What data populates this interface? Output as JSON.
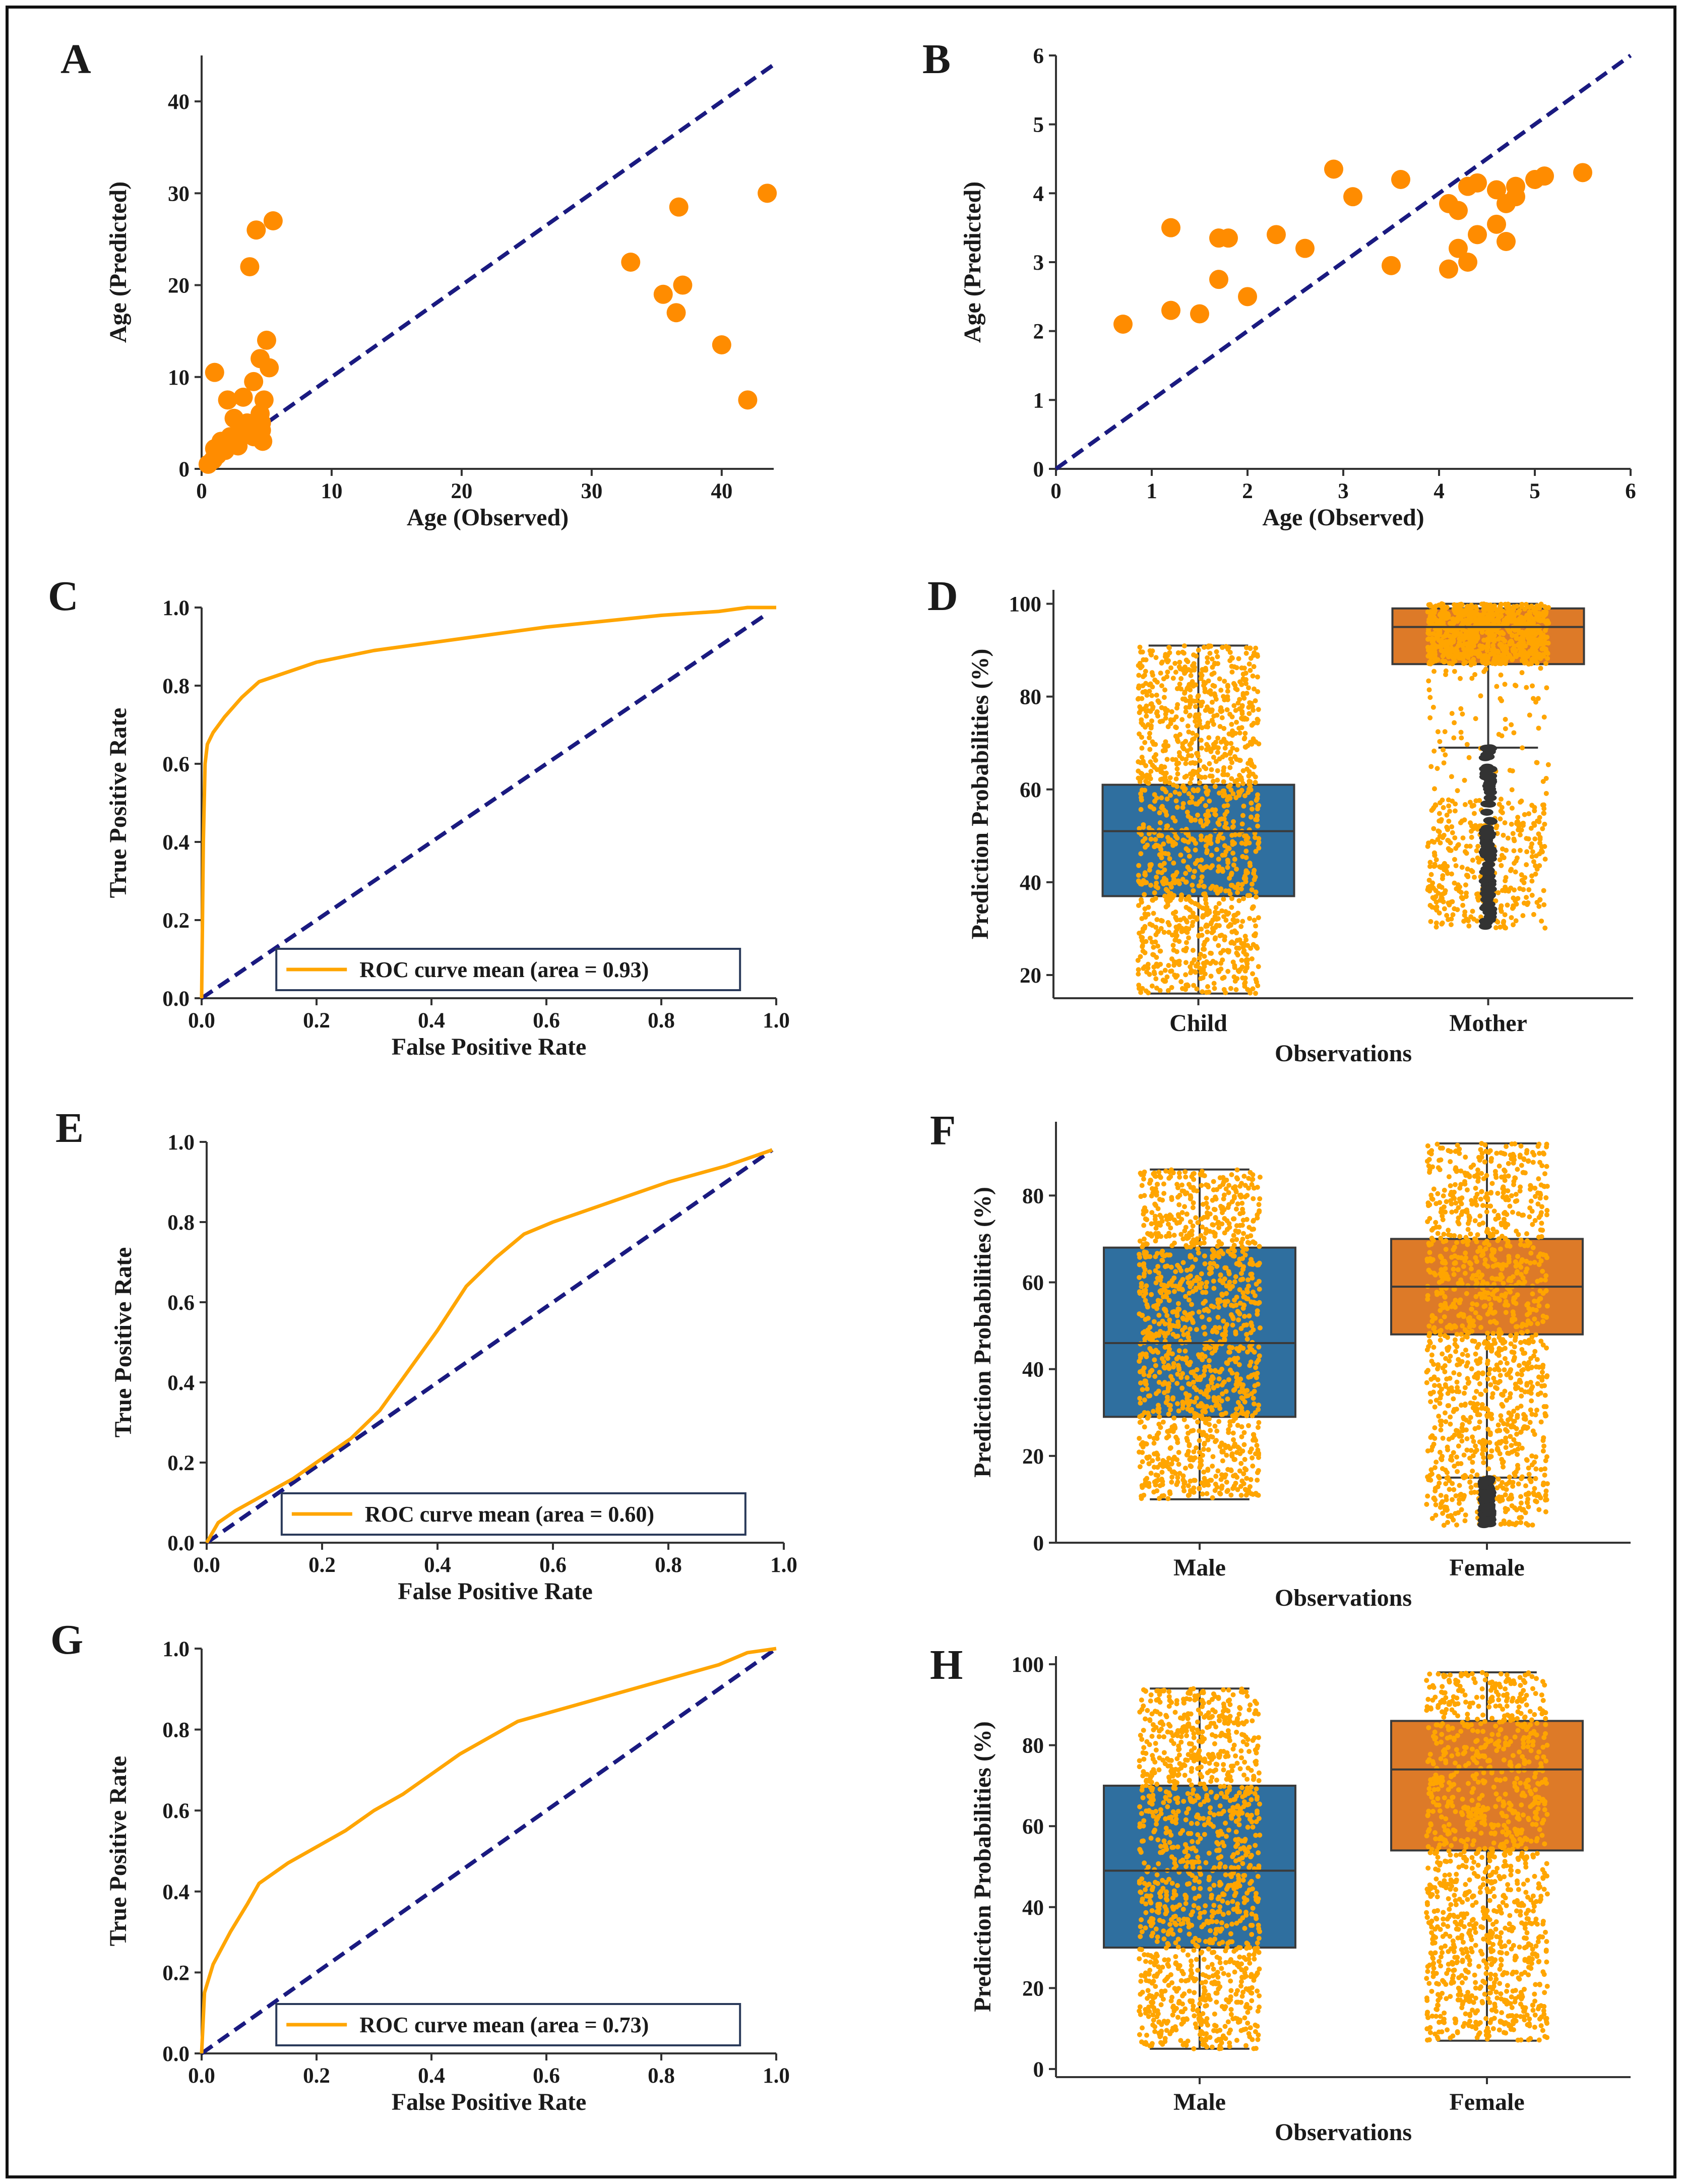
{
  "figure": {
    "border_color": "#111111",
    "colors": {
      "scatter_point": "#ff8c00",
      "diagonal": "#1a1a80",
      "roc_line": "#ffa500",
      "box_blue": "#2f6f9f",
      "box_orange": "#dd7a28",
      "jitter": "#ffa500",
      "outlier": "#333333"
    }
  },
  "chart_data": [
    {
      "panel": "A",
      "type": "scatter",
      "xlabel": "Age (Observed)",
      "ylabel": "Age (Predicted)",
      "xlim": [
        0,
        44
      ],
      "ylim": [
        0,
        45
      ],
      "xticks": [
        0,
        10,
        20,
        30,
        40
      ],
      "yticks": [
        0,
        10,
        20,
        30,
        40
      ],
      "diagonal": true,
      "points": [
        [
          0.5,
          0.5
        ],
        [
          0.9,
          1.0
        ],
        [
          1.0,
          2.2
        ],
        [
          1.2,
          1.5
        ],
        [
          1.5,
          3.0
        ],
        [
          1.0,
          10.5
        ],
        [
          1.8,
          2.0
        ],
        [
          2.0,
          7.5
        ],
        [
          2.2,
          3.5
        ],
        [
          2.5,
          5.5
        ],
        [
          2.8,
          2.5
        ],
        [
          3.0,
          4.0
        ],
        [
          3.2,
          7.8
        ],
        [
          3.5,
          5.0
        ],
        [
          3.7,
          22.0
        ],
        [
          4.0,
          9.5
        ],
        [
          4.2,
          26.0
        ],
        [
          4.0,
          3.5
        ],
        [
          4.3,
          4.5
        ],
        [
          4.5,
          6.0
        ],
        [
          4.5,
          12.0
        ],
        [
          4.6,
          5.0
        ],
        [
          4.7,
          3.0
        ],
        [
          4.8,
          7.5
        ],
        [
          5.0,
          14.0
        ],
        [
          5.2,
          11.0
        ],
        [
          5.5,
          27.0
        ],
        [
          4.4,
          3.8
        ],
        [
          4.6,
          4.2
        ],
        [
          33.0,
          22.5
        ],
        [
          35.5,
          19.0
        ],
        [
          36.5,
          17.0
        ],
        [
          36.7,
          28.5
        ],
        [
          37.0,
          20.0
        ],
        [
          40.0,
          13.5
        ],
        [
          42.0,
          7.5
        ],
        [
          43.5,
          30.0
        ]
      ]
    },
    {
      "panel": "B",
      "type": "scatter",
      "xlabel": "Age (Observed)",
      "ylabel": "Age (Predicted)",
      "xlim": [
        0,
        6
      ],
      "ylim": [
        0,
        6
      ],
      "xticks": [
        0,
        1,
        2,
        3,
        4,
        5,
        6
      ],
      "yticks": [
        0,
        1,
        2,
        3,
        4,
        5,
        6
      ],
      "diagonal": true,
      "points": [
        [
          0.7,
          2.1
        ],
        [
          1.2,
          3.5
        ],
        [
          1.2,
          2.3
        ],
        [
          1.5,
          2.25
        ],
        [
          1.7,
          3.35
        ],
        [
          1.7,
          2.75
        ],
        [
          1.8,
          3.35
        ],
        [
          2.0,
          2.5
        ],
        [
          2.3,
          3.4
        ],
        [
          2.6,
          3.2
        ],
        [
          2.9,
          4.35
        ],
        [
          3.1,
          3.95
        ],
        [
          3.5,
          2.95
        ],
        [
          3.6,
          4.2
        ],
        [
          4.1,
          3.85
        ],
        [
          4.1,
          2.9
        ],
        [
          4.2,
          3.75
        ],
        [
          4.2,
          3.2
        ],
        [
          4.3,
          4.1
        ],
        [
          4.3,
          3.0
        ],
        [
          4.4,
          4.15
        ],
        [
          4.4,
          3.4
        ],
        [
          4.6,
          4.05
        ],
        [
          4.6,
          3.55
        ],
        [
          4.7,
          3.3
        ],
        [
          4.7,
          3.85
        ],
        [
          4.8,
          4.1
        ],
        [
          4.8,
          3.95
        ],
        [
          5.0,
          4.2
        ],
        [
          5.1,
          4.25
        ],
        [
          5.5,
          4.3
        ]
      ]
    },
    {
      "panel": "C",
      "type": "line",
      "title": "",
      "xlabel": "False Positive Rate",
      "ylabel": "True Positive Rate",
      "xlim": [
        0,
        1.0
      ],
      "ylim": [
        0,
        1.0
      ],
      "xticks": [
        "0.0",
        "0.2",
        "0.4",
        "0.6",
        "0.8",
        "1.0"
      ],
      "yticks": [
        "0.0",
        "0.2",
        "0.4",
        "0.6",
        "0.8",
        "1.0"
      ],
      "legend": "ROC curve mean (area = 0.93)",
      "diagonal_end": [
        0.98,
        0.98
      ],
      "series": [
        {
          "name": "ROC curve mean (area = 0.93)",
          "x": [
            0,
            0.003,
            0.006,
            0.01,
            0.02,
            0.04,
            0.07,
            0.1,
            0.12,
            0.2,
            0.3,
            0.4,
            0.5,
            0.6,
            0.7,
            0.8,
            0.9,
            0.95,
            1.0
          ],
          "y": [
            0,
            0.4,
            0.6,
            0.65,
            0.68,
            0.72,
            0.77,
            0.81,
            0.82,
            0.86,
            0.89,
            0.91,
            0.93,
            0.95,
            0.965,
            0.98,
            0.99,
            1.0,
            1.0
          ]
        }
      ]
    },
    {
      "panel": "D",
      "type": "box",
      "xlabel": "Observations",
      "ylabel": "Prediction Probabilities (%)",
      "ylim": [
        15,
        103
      ],
      "yticks": [
        20,
        40,
        60,
        80,
        100
      ],
      "categories": [
        "Child",
        "Mother"
      ],
      "boxes": [
        {
          "name": "Child",
          "min": 16,
          "q1": 37,
          "median": 51,
          "q3": 61,
          "max": 91,
          "jitter_range": [
            16,
            91
          ],
          "outlier_range": null
        },
        {
          "name": "Mother",
          "min": 69,
          "q1": 87,
          "median": 95,
          "q3": 99,
          "max": 100,
          "jitter_range": [
            30,
            100
          ],
          "outlier_range": [
            30,
            69
          ]
        }
      ]
    },
    {
      "panel": "E",
      "type": "line",
      "xlabel": "False Positive Rate",
      "ylabel": "True Positive Rate",
      "xlim": [
        0,
        1.0
      ],
      "ylim": [
        0,
        1.0
      ],
      "xticks": [
        "0.0",
        "0.2",
        "0.4",
        "0.6",
        "0.8",
        "1.0"
      ],
      "yticks": [
        "0.0",
        "0.2",
        "0.4",
        "0.6",
        "0.8",
        "1.0"
      ],
      "legend": "ROC curve mean (area = 0.60)",
      "diagonal_end": [
        0.98,
        0.98
      ],
      "series": [
        {
          "name": "ROC curve mean (area = 0.60)",
          "x": [
            0,
            0.02,
            0.05,
            0.1,
            0.15,
            0.2,
            0.25,
            0.3,
            0.35,
            0.4,
            0.45,
            0.5,
            0.55,
            0.6,
            0.7,
            0.8,
            0.9,
            0.98
          ],
          "y": [
            0,
            0.05,
            0.08,
            0.12,
            0.16,
            0.21,
            0.26,
            0.33,
            0.43,
            0.53,
            0.64,
            0.71,
            0.77,
            0.8,
            0.85,
            0.9,
            0.94,
            0.98
          ]
        }
      ]
    },
    {
      "panel": "F",
      "type": "box",
      "xlabel": "Observations",
      "ylabel": "Prediction Probabilities (%)",
      "ylim": [
        0,
        97
      ],
      "yticks": [
        0,
        20,
        40,
        60,
        80
      ],
      "categories": [
        "Male",
        "Female"
      ],
      "boxes": [
        {
          "name": "Male",
          "min": 10,
          "q1": 29,
          "median": 46,
          "q3": 68,
          "max": 86,
          "jitter_range": [
            10,
            86
          ],
          "outlier_range": null
        },
        {
          "name": "Female",
          "min": 15,
          "q1": 48,
          "median": 59,
          "q3": 70,
          "max": 92,
          "jitter_range": [
            4,
            92
          ],
          "outlier_range": [
            4,
            15
          ]
        }
      ]
    },
    {
      "panel": "G",
      "type": "line",
      "xlabel": "False Positive Rate",
      "ylabel": "True Positive Rate",
      "xlim": [
        0,
        1.0
      ],
      "ylim": [
        0,
        1.0
      ],
      "xticks": [
        "0.0",
        "0.2",
        "0.4",
        "0.6",
        "0.8",
        "1.0"
      ],
      "yticks": [
        "0.0",
        "0.2",
        "0.4",
        "0.6",
        "0.8",
        "1.0"
      ],
      "legend": "ROC curve mean (area = 0.73)",
      "diagonal_end": [
        1.0,
        1.0
      ],
      "series": [
        {
          "name": "ROC curve mean (area = 0.73)",
          "x": [
            0,
            0.005,
            0.02,
            0.05,
            0.08,
            0.1,
            0.15,
            0.2,
            0.25,
            0.3,
            0.35,
            0.4,
            0.45,
            0.5,
            0.55,
            0.6,
            0.7,
            0.8,
            0.9,
            0.95,
            1.0
          ],
          "y": [
            0,
            0.15,
            0.22,
            0.3,
            0.37,
            0.42,
            0.47,
            0.51,
            0.55,
            0.6,
            0.64,
            0.69,
            0.74,
            0.78,
            0.82,
            0.84,
            0.88,
            0.92,
            0.96,
            0.99,
            1.0
          ]
        }
      ]
    },
    {
      "panel": "H",
      "type": "box",
      "xlabel": "Observations",
      "ylabel": "Prediction Probabilities (%)",
      "ylim": [
        -2,
        102
      ],
      "yticks": [
        0,
        20,
        40,
        60,
        80,
        100
      ],
      "categories": [
        "Male",
        "Female"
      ],
      "boxes": [
        {
          "name": "Male",
          "min": 5,
          "q1": 30,
          "median": 49,
          "q3": 70,
          "max": 94,
          "jitter_range": [
            5,
            94
          ],
          "outlier_range": null
        },
        {
          "name": "Female",
          "min": 7,
          "q1": 54,
          "median": 74,
          "q3": 86,
          "max": 98,
          "jitter_range": [
            7,
            98
          ],
          "outlier_range": null
        }
      ]
    }
  ]
}
